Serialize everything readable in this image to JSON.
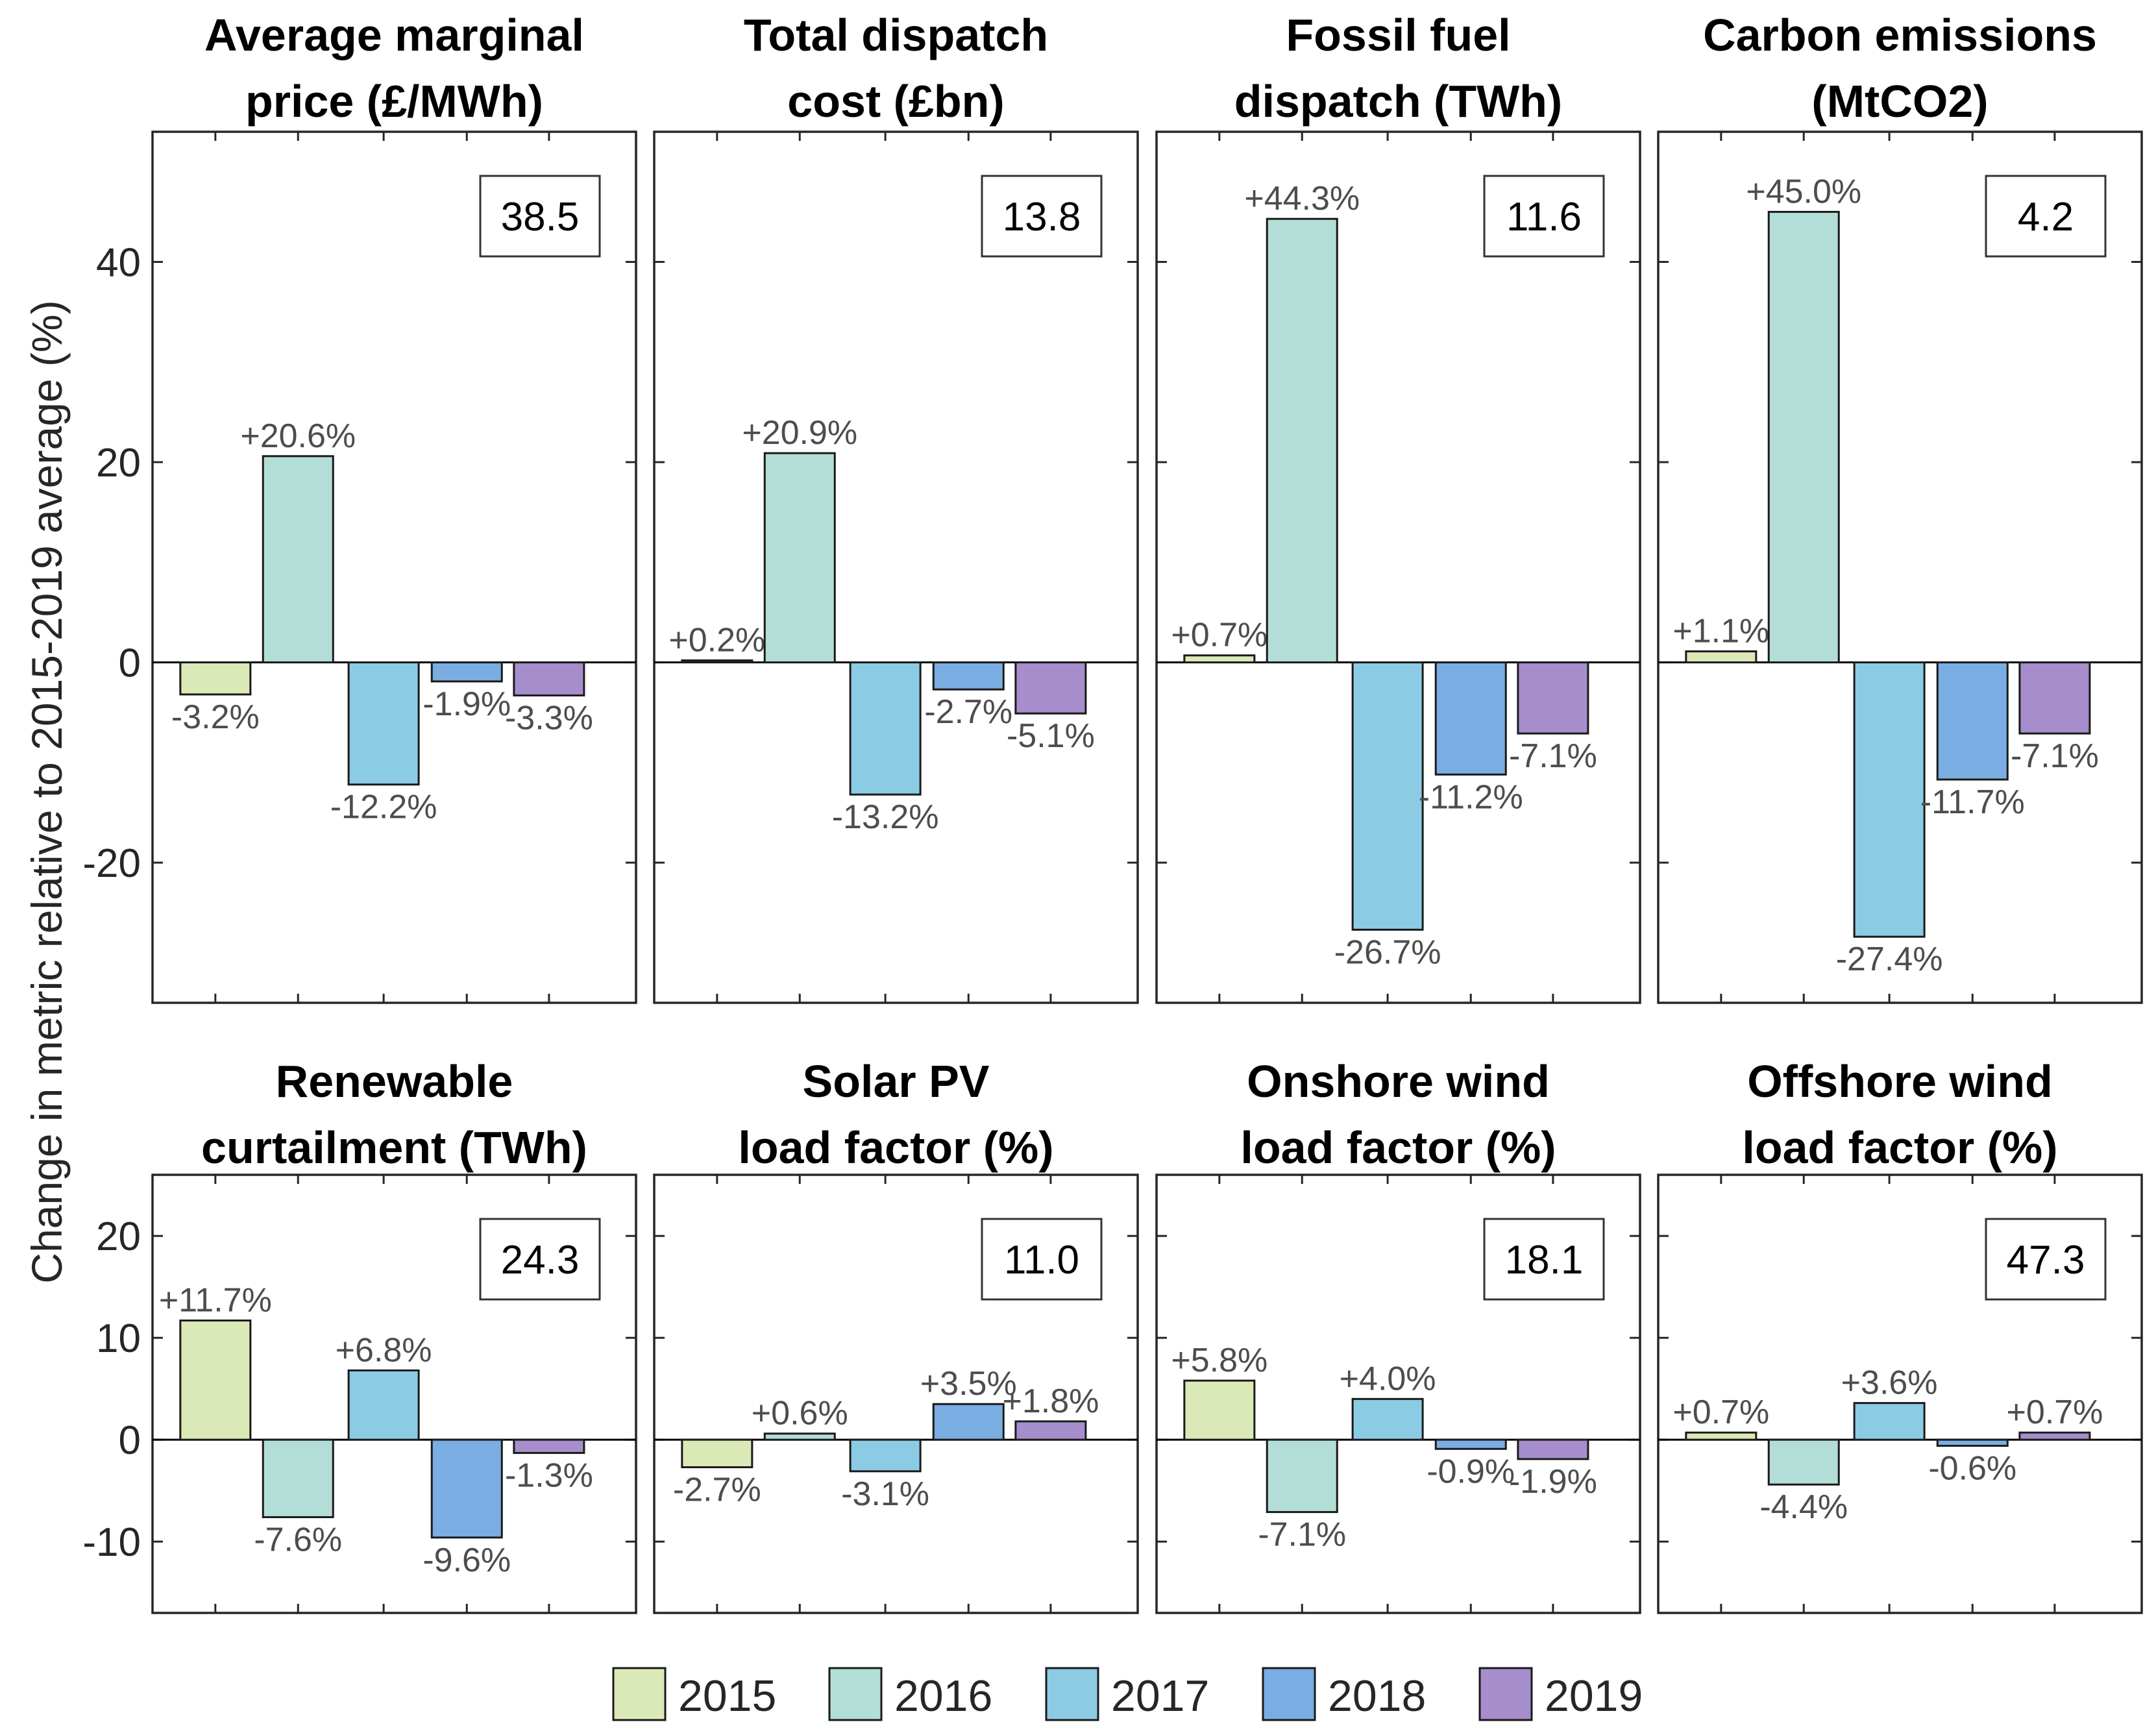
{
  "legend": {
    "entries": [
      {
        "year": "2015",
        "color": "#dbe9b6"
      },
      {
        "year": "2016",
        "color": "#b3ded8"
      },
      {
        "year": "2017",
        "color": "#8ccbe4"
      },
      {
        "year": "2018",
        "color": "#7aaee3"
      },
      {
        "year": "2019",
        "color": "#a58ecb"
      }
    ]
  },
  "chart_data": [
    {
      "type": "bar",
      "title": [
        "Average marginal",
        "price (£/MWh)"
      ],
      "baseline_value": "38.5",
      "categories": [
        "2015",
        "2016",
        "2017",
        "2018",
        "2019"
      ],
      "values": [
        -3.2,
        20.6,
        -12.2,
        -1.9,
        -3.3
      ],
      "labels": [
        "-3.2%",
        "+20.6%",
        "-12.2%",
        "-1.9%",
        "-3.3%"
      ],
      "ylabel": "Change in metric relative to 2015-2019 average (%)",
      "ylim": [
        -34,
        53
      ],
      "yticks": [
        40,
        20,
        0,
        -20
      ],
      "ytick_labels": [
        "40",
        "20",
        "0",
        "-20"
      ]
    },
    {
      "type": "bar",
      "title": [
        "Total dispatch",
        "cost (£bn)"
      ],
      "baseline_value": "13.8",
      "categories": [
        "2015",
        "2016",
        "2017",
        "2018",
        "2019"
      ],
      "values": [
        0.2,
        20.9,
        -13.2,
        -2.7,
        -5.1
      ],
      "labels": [
        "+0.2%",
        "+20.9%",
        "-13.2%",
        "-2.7%",
        "-5.1%"
      ],
      "ylim": [
        -34,
        53
      ],
      "yticks": [
        40,
        20,
        0,
        -20
      ]
    },
    {
      "type": "bar",
      "title": [
        "Fossil fuel",
        "dispatch (TWh)"
      ],
      "baseline_value": "11.6",
      "categories": [
        "2015",
        "2016",
        "2017",
        "2018",
        "2019"
      ],
      "values": [
        0.7,
        44.3,
        -26.7,
        -11.2,
        -7.1
      ],
      "labels": [
        "+0.7%",
        "+44.3%",
        "-26.7%",
        "-11.2%",
        "-7.1%"
      ],
      "ylim": [
        -34,
        53
      ],
      "yticks": [
        40,
        20,
        0,
        -20
      ]
    },
    {
      "type": "bar",
      "title": [
        "Carbon emissions",
        "(MtCO2)"
      ],
      "baseline_value": "4.2",
      "categories": [
        "2015",
        "2016",
        "2017",
        "2018",
        "2019"
      ],
      "values": [
        1.1,
        45.0,
        -27.4,
        -11.7,
        -7.1
      ],
      "labels": [
        "+1.1%",
        "+45.0%",
        "-27.4%",
        "-11.7%",
        "-7.1%"
      ],
      "ylim": [
        -34,
        53
      ],
      "yticks": [
        40,
        20,
        0,
        -20
      ]
    },
    {
      "type": "bar",
      "title": [
        "Renewable",
        "curtailment (TWh)"
      ],
      "baseline_value": "24.3",
      "categories": [
        "2015",
        "2016",
        "2017",
        "2018",
        "2019"
      ],
      "values": [
        11.7,
        -7.6,
        6.8,
        -9.6,
        -1.3
      ],
      "labels": [
        "+11.7%",
        "-7.6%",
        "+6.8%",
        "-9.6%",
        "-1.3%"
      ],
      "ylim": [
        -17,
        26
      ],
      "yticks": [
        20,
        10,
        0,
        -10
      ],
      "ytick_labels": [
        "20",
        "10",
        "0",
        "-10"
      ]
    },
    {
      "type": "bar",
      "title": [
        "Solar PV",
        "load factor (%)"
      ],
      "baseline_value": "11.0",
      "categories": [
        "2015",
        "2016",
        "2017",
        "2018",
        "2019"
      ],
      "values": [
        -2.7,
        0.6,
        -3.1,
        3.5,
        1.8
      ],
      "labels": [
        "-2.7%",
        "+0.6%",
        "-3.1%",
        "+3.5%",
        "+1.8%"
      ],
      "ylim": [
        -17,
        26
      ],
      "yticks": [
        20,
        10,
        0,
        -10
      ]
    },
    {
      "type": "bar",
      "title": [
        "Onshore wind",
        "load factor (%)"
      ],
      "baseline_value": "18.1",
      "categories": [
        "2015",
        "2016",
        "2017",
        "2018",
        "2019"
      ],
      "values": [
        5.8,
        -7.1,
        4.0,
        -0.9,
        -1.9
      ],
      "labels": [
        "+5.8%",
        "-7.1%",
        "+4.0%",
        "-0.9%",
        "-1.9%"
      ],
      "ylim": [
        -17,
        26
      ],
      "yticks": [
        20,
        10,
        0,
        -10
      ]
    },
    {
      "type": "bar",
      "title": [
        "Offshore wind",
        "load factor (%)"
      ],
      "baseline_value": "47.3",
      "categories": [
        "2015",
        "2016",
        "2017",
        "2018",
        "2019"
      ],
      "values": [
        0.7,
        -4.4,
        3.6,
        -0.6,
        0.7
      ],
      "labels": [
        "+0.7%",
        "-4.4%",
        "+3.6%",
        "-0.6%",
        "+0.7%"
      ],
      "ylim": [
        -17,
        26
      ],
      "yticks": [
        20,
        10,
        0,
        -10
      ]
    }
  ]
}
